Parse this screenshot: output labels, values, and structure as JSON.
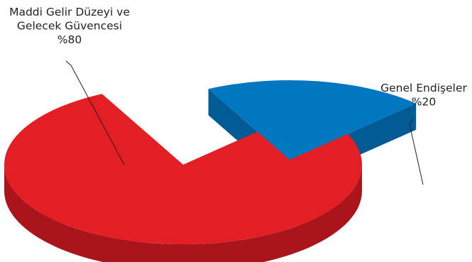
{
  "chart_data": {
    "type": "pie",
    "title": "",
    "slices": [
      {
        "label": "Maddi Gelir Düzeyi ve Gelecek Güvencesi",
        "label_lines": [
          "Maddi Gelir Düzeyi ve",
          "Gelecek Güvencesi"
        ],
        "value": 80,
        "value_label": "%80",
        "color": "#e31e24",
        "side_color": "#a9151b",
        "exploded": false
      },
      {
        "label": "Genel Endişeler",
        "label_lines": [
          "Genel Endişeler"
        ],
        "value": 20,
        "value_label": "%20",
        "color": "#0077c0",
        "side_color": "#005a93",
        "exploded": true
      }
    ],
    "three_d": true,
    "legend": "none"
  }
}
